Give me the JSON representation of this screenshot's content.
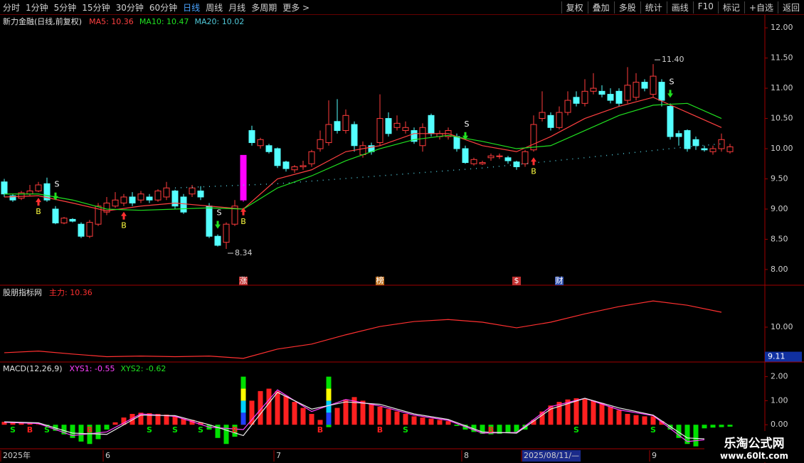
{
  "toolbar": {
    "left": [
      "分时",
      "1分钟",
      "5分钟",
      "15分钟",
      "30分钟",
      "60分钟",
      "日线",
      "周线",
      "月线",
      "多周期",
      "更多 >"
    ],
    "active": 6,
    "right": [
      "复权",
      "叠加",
      "多股",
      "统计",
      "画线",
      "F10",
      "标记",
      "+自选",
      "返回"
    ]
  },
  "chart_data": [
    {
      "type": "candlestick",
      "title": "新力金融(日线,前复权)",
      "ylim": [
        7.74,
        12.19
      ],
      "yticks": [
        {
          "value": 12,
          "label": "12.00"
        },
        {
          "value": 11.5,
          "label": "11.50"
        },
        {
          "value": 11,
          "label": "11.00"
        },
        {
          "value": 10.5,
          "label": "10.50"
        },
        {
          "value": 10,
          "label": "10.00"
        },
        {
          "value": 9.5,
          "label": "9.50"
        },
        {
          "value": 9,
          "label": "9.00"
        },
        {
          "value": 8.5,
          "label": "8.50"
        },
        {
          "value": 8,
          "label": "8.00"
        }
      ],
      "up_color": "#ff3c3c",
      "down_color": "#54ffff",
      "limit_color": "#ff00ff",
      "limit_up": [
        28
      ],
      "ohlc": {
        "open": [
          9.45,
          9.22,
          9.18,
          9.25,
          9.3,
          9.42,
          9.0,
          8.77,
          8.83,
          8.75,
          8.55,
          8.75,
          8.95,
          9.05,
          9.1,
          9.2,
          9.15,
          9.2,
          9.15,
          9.2,
          9.3,
          9.2,
          9.25,
          9.3,
          9.05,
          8.55,
          8.45,
          8.75,
          9.15,
          10.3,
          10.05,
          10.05,
          10.0,
          9.78,
          9.65,
          9.7,
          9.75,
          10.0,
          10.1,
          10.45,
          10.3,
          10.4,
          9.9,
          10.05,
          10.1,
          10.5,
          10.35,
          10.3,
          10.3,
          10.05,
          10.55,
          10.2,
          10.2,
          10.2,
          10.0,
          9.75,
          9.75,
          9.85,
          9.87,
          9.85,
          9.78,
          9.75,
          9.98,
          10.5,
          10.55,
          10.35,
          10.6,
          10.85,
          10.75,
          10.95,
          10.95,
          10.9,
          10.95,
          10.8,
          10.85,
          11.1,
          10.9,
          11.1,
          10.7,
          10.25,
          10.3,
          10.15,
          10.0,
          9.95,
          10.0,
          9.95
        ],
        "high": [
          9.5,
          9.25,
          9.3,
          9.4,
          9.45,
          9.52,
          9.05,
          8.87,
          8.85,
          8.78,
          8.82,
          9.1,
          9.2,
          9.28,
          9.25,
          9.28,
          9.3,
          9.25,
          9.33,
          9.45,
          9.32,
          9.25,
          9.4,
          9.38,
          9.1,
          8.58,
          8.78,
          9.15,
          9.89,
          10.38,
          10.18,
          10.08,
          10.02,
          9.8,
          9.73,
          9.8,
          9.98,
          10.3,
          10.8,
          10.82,
          10.65,
          10.45,
          10.12,
          10.1,
          10.9,
          10.6,
          10.55,
          10.45,
          10.35,
          10.42,
          10.58,
          10.3,
          10.35,
          10.25,
          10.05,
          9.85,
          9.8,
          9.92,
          9.92,
          9.88,
          9.8,
          9.98,
          10.55,
          10.95,
          10.6,
          10.7,
          10.95,
          10.95,
          11.15,
          11.25,
          11.05,
          11.0,
          11.0,
          11.35,
          11.25,
          11.15,
          11.4,
          11.15,
          10.75,
          10.3,
          10.32,
          10.2,
          10.05,
          10.05,
          10.25,
          10.08
        ],
        "low": [
          9.2,
          9.12,
          9.15,
          9.22,
          9.28,
          9.12,
          8.75,
          8.75,
          8.78,
          8.52,
          8.52,
          8.72,
          8.9,
          9.02,
          9.05,
          9.05,
          9.1,
          9.1,
          9.12,
          9.15,
          9.0,
          8.92,
          9.2,
          9.15,
          8.52,
          8.38,
          8.34,
          8.72,
          9.12,
          10.05,
          10.0,
          9.92,
          9.68,
          9.62,
          9.6,
          9.65,
          9.7,
          9.95,
          10.05,
          10.25,
          10.25,
          9.95,
          9.85,
          9.9,
          10.05,
          10.2,
          10.3,
          10.25,
          10.08,
          9.95,
          10.2,
          10.15,
          10.15,
          9.95,
          9.75,
          9.72,
          9.73,
          9.8,
          9.83,
          9.75,
          9.65,
          9.7,
          9.95,
          10.45,
          10.3,
          10.32,
          10.55,
          10.7,
          10.7,
          10.9,
          10.85,
          10.75,
          10.7,
          10.75,
          10.8,
          10.95,
          10.85,
          10.7,
          10.15,
          10.05,
          9.95,
          9.98,
          9.95,
          9.9,
          9.95,
          9.92
        ],
        "close": [
          9.25,
          9.15,
          9.27,
          9.3,
          9.4,
          9.15,
          8.77,
          8.85,
          8.8,
          8.55,
          8.78,
          9.05,
          9.1,
          9.15,
          9.2,
          9.1,
          9.25,
          9.15,
          9.3,
          9.35,
          9.05,
          8.95,
          9.35,
          9.2,
          8.55,
          8.4,
          8.75,
          9.05,
          9.89,
          10.1,
          10.15,
          9.95,
          9.72,
          9.67,
          9.7,
          9.72,
          9.95,
          10.15,
          10.4,
          10.3,
          10.55,
          10.05,
          10.05,
          9.95,
          10.5,
          10.25,
          10.42,
          10.35,
          10.12,
          10.35,
          10.25,
          10.25,
          10.3,
          10.0,
          9.77,
          9.82,
          9.77,
          9.88,
          9.88,
          9.8,
          9.7,
          9.95,
          10.4,
          10.6,
          10.35,
          10.6,
          10.8,
          10.75,
          10.95,
          11.0,
          10.9,
          10.8,
          10.75,
          11.05,
          11.1,
          11.0,
          11.2,
          10.8,
          10.2,
          10.2,
          10.0,
          10.05,
          9.98,
          10.0,
          10.15,
          10.03
        ]
      },
      "series": [
        {
          "name": "MA5: 10.36",
          "color": "#ff4040",
          "x": [
            0,
            4,
            8,
            12,
            16,
            20,
            24,
            28,
            32,
            36,
            40,
            44,
            48,
            52,
            56,
            60,
            64,
            68,
            72,
            76,
            80,
            84
          ],
          "values": [
            9.2,
            9.22,
            9.1,
            8.97,
            9.05,
            9.1,
            9.05,
            9.0,
            9.5,
            9.65,
            9.95,
            10.05,
            10.25,
            10.25,
            10.05,
            9.95,
            10.2,
            10.5,
            10.7,
            10.85,
            10.6,
            10.35
          ]
        },
        {
          "name": "MA10: 10.47",
          "color": "#20e020",
          "x": [
            0,
            4,
            8,
            12,
            16,
            20,
            24,
            28,
            32,
            36,
            40,
            44,
            48,
            52,
            56,
            60,
            64,
            68,
            72,
            76,
            80,
            84
          ],
          "values": [
            9.25,
            9.25,
            9.15,
            9.0,
            8.98,
            9.0,
            9.02,
            9.0,
            9.35,
            9.55,
            9.8,
            10.0,
            10.15,
            10.22,
            10.12,
            10.0,
            10.05,
            10.3,
            10.55,
            10.72,
            10.75,
            10.5
          ]
        },
        {
          "name": "MA20: 10.02",
          "color": "#50c8d8",
          "style": "dotted",
          "x": [
            20,
            32,
            44,
            56,
            68,
            80,
            84
          ],
          "values": [
            9.35,
            9.42,
            9.55,
            9.68,
            9.85,
            10.03,
            10.08
          ]
        }
      ],
      "signals": [
        {
          "label": "B",
          "index": 4,
          "side": "below",
          "color": "#ffff40",
          "arrow": "#ff3030"
        },
        {
          "label": "S",
          "index": 6,
          "side": "above",
          "color": "#ffffff",
          "arrow": "#20e020"
        },
        {
          "label": "B",
          "index": 14,
          "side": "below",
          "color": "#ffff40",
          "arrow": "#ff3030"
        },
        {
          "label": "S",
          "index": 25,
          "side": "above",
          "color": "#ffffff",
          "arrow": "#20e020"
        },
        {
          "label": "B",
          "index": 28,
          "side": "below",
          "color": "#ffff40",
          "arrow": "#ff3030"
        },
        {
          "label": "S",
          "index": 54,
          "side": "above",
          "color": "#ffffff",
          "arrow": "#20e020"
        },
        {
          "label": "B",
          "index": 62,
          "side": "below",
          "color": "#ffff40",
          "arrow": "#ff3030"
        },
        {
          "label": "S",
          "index": 78,
          "side": "above",
          "color": "#ffffff",
          "arrow": "#20e020"
        }
      ],
      "annotations": [
        {
          "index": 26,
          "value": 8.34,
          "side": "below"
        },
        {
          "index": 76,
          "value": 11.4,
          "label": "11.40",
          "side": "above"
        }
      ],
      "events": [
        {
          "label": "涨",
          "index": 28,
          "color": "#c03030"
        },
        {
          "label": "榜",
          "index": 44,
          "color": "#c07020"
        },
        {
          "label": "$",
          "index": 60,
          "color": "#c03030"
        },
        {
          "label": "财",
          "index": 65,
          "color": "#3050b0"
        }
      ]
    },
    {
      "type": "line",
      "title": "股朋指标网",
      "ylim": [
        8.95,
        11.2
      ],
      "yticks": [
        {
          "value": 10,
          "label": "10.00"
        }
      ],
      "current": 9.11,
      "series": [
        {
          "name": "主力: 10.36",
          "color": "#ff3030",
          "x": [
            0,
            4,
            8,
            12,
            16,
            20,
            24,
            28,
            32,
            36,
            40,
            44,
            48,
            52,
            56,
            60,
            64,
            68,
            72,
            76,
            80,
            84
          ],
          "values": [
            9.23,
            9.28,
            9.19,
            9.11,
            9.13,
            9.11,
            9.13,
            9.06,
            9.34,
            9.49,
            9.77,
            10.02,
            10.17,
            10.23,
            10.15,
            9.98,
            10.15,
            10.4,
            10.62,
            10.79,
            10.66,
            10.45
          ]
        }
      ]
    },
    {
      "type": "bar",
      "title": "MACD(12,26,9)",
      "ylim": [
        -1.0,
        2.55
      ],
      "yticks": [
        {
          "value": 0,
          "label": "0.00"
        },
        {
          "value": 1,
          "label": "1.00"
        },
        {
          "value": 2,
          "label": "2.00"
        }
      ],
      "pos_color": "#ff2020",
      "neg_color": "#00e000",
      "values": [
        0.12,
        0.1,
        0.08,
        0.05,
        0.02,
        -0.05,
        -0.25,
        -0.4,
        -0.55,
        -0.7,
        -0.8,
        -0.6,
        -0.2,
        0.1,
        0.3,
        0.45,
        0.5,
        0.48,
        0.45,
        0.42,
        0.35,
        0.25,
        0.2,
        0.1,
        -0.2,
        -0.55,
        -0.8,
        -0.5,
        0.3,
        1.0,
        1.4,
        1.5,
        1.4,
        1.2,
        0.95,
        0.7,
        0.45,
        0.2,
        -0.1,
        0.7,
        1.05,
        1.15,
        1.0,
        0.85,
        0.75,
        0.65,
        0.55,
        0.45,
        0.35,
        0.3,
        0.25,
        0.2,
        0.15,
        -0.05,
        -0.2,
        -0.3,
        -0.38,
        -0.4,
        -0.38,
        -0.35,
        -0.3,
        -0.2,
        0.2,
        0.55,
        0.8,
        0.95,
        1.05,
        1.1,
        1.08,
        1.0,
        0.9,
        0.75,
        0.6,
        0.45,
        0.4,
        0.35,
        0.35,
        0.15,
        -0.2,
        -0.55,
        -0.8,
        -0.9,
        -0.15,
        -0.12,
        -0.1,
        -0.08
      ],
      "series": [
        {
          "name": "XYS1: -0.55",
          "color": "#ff40ff",
          "x": [
            0,
            4,
            8,
            12,
            16,
            20,
            24,
            28,
            32,
            36,
            40,
            44,
            48,
            52,
            56,
            60,
            64,
            68,
            72,
            76,
            80,
            84
          ],
          "values": [
            0.1,
            0.05,
            -0.45,
            -0.3,
            0.45,
            0.35,
            -0.1,
            -0.2,
            1.45,
            0.55,
            1.05,
            0.78,
            0.4,
            0.18,
            -0.35,
            -0.32,
            0.75,
            1.1,
            0.62,
            0.38,
            -0.7,
            -0.55
          ]
        },
        {
          "name": "XYS2: -0.62",
          "color": "#20e020",
          "line_color": "#e8e8e8",
          "x": [
            0,
            4,
            8,
            12,
            16,
            20,
            24,
            28,
            32,
            36,
            40,
            44,
            48,
            52,
            56,
            60,
            64,
            68,
            72,
            76,
            80,
            84
          ],
          "values": [
            0.12,
            0.08,
            -0.35,
            -0.4,
            0.4,
            0.38,
            0.0,
            -0.45,
            1.35,
            0.65,
            0.95,
            0.85,
            0.45,
            0.22,
            -0.3,
            -0.35,
            0.65,
            1.1,
            0.7,
            0.4,
            -0.55,
            -0.62
          ]
        }
      ],
      "special_bars": [
        {
          "index": 28,
          "value": 2.0
        },
        {
          "index": 38,
          "value": 2.0
        }
      ],
      "special_colors": [
        "#2040ff",
        "#00d0ff",
        "#ffff00",
        "#00e000"
      ],
      "signals": [
        {
          "label": "S",
          "index": 1,
          "color": "#00e000"
        },
        {
          "label": "B",
          "index": 3,
          "color": "#ff2020"
        },
        {
          "label": "S",
          "index": 5,
          "color": "#00e000"
        },
        {
          "label": "B",
          "index": 10,
          "color": "#ff2020"
        },
        {
          "label": "S",
          "index": 17,
          "color": "#00e000"
        },
        {
          "label": "S",
          "index": 20,
          "color": "#00e000"
        },
        {
          "label": "S",
          "index": 23,
          "color": "#00e000"
        },
        {
          "label": "B",
          "index": 27,
          "color": "#ff2020"
        },
        {
          "label": "B",
          "index": 37,
          "color": "#ff2020"
        },
        {
          "label": "B",
          "index": 44,
          "color": "#ff2020"
        },
        {
          "label": "S",
          "index": 47,
          "color": "#00e000"
        },
        {
          "label": "B",
          "index": 57,
          "color": "#ff2020"
        },
        {
          "label": "S",
          "index": 67,
          "color": "#00e000"
        },
        {
          "label": "S",
          "index": 76,
          "color": "#00e000"
        }
      ]
    }
  ],
  "date_axis": [
    {
      "label": "2025年",
      "index": 0
    },
    {
      "label": "6",
      "index": 12
    },
    {
      "label": "7",
      "index": 32
    },
    {
      "label": "8",
      "index": 54
    },
    {
      "label": "2025/08/11/—",
      "index": 61,
      "highlight": true
    },
    {
      "label": "9",
      "index": 76
    }
  ],
  "watermark": {
    "title": "乐淘公式网",
    "url": "www.60lt.com"
  }
}
